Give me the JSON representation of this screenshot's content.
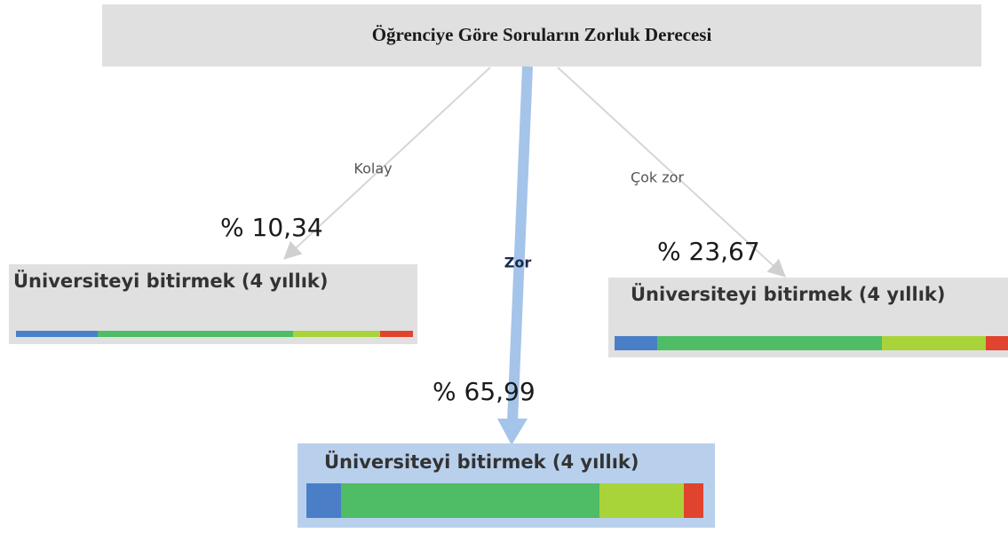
{
  "title": "Öğrenciye Göre Soruların Zorluk Derecesi",
  "branches": [
    {
      "edge_label": "Kolay",
      "percent": "% 10,34",
      "label": "Üniversiteyi bitirmek (4 yıllık)"
    },
    {
      "edge_label": "Zor",
      "percent": "% 65,99",
      "label": "Üniversiteyi bitirmek (4 yıllık)"
    },
    {
      "edge_label": "Çok zor",
      "percent": "% 23,67",
      "label": "Üniversiteyi bitirmek (4 yıllık)"
    }
  ]
}
